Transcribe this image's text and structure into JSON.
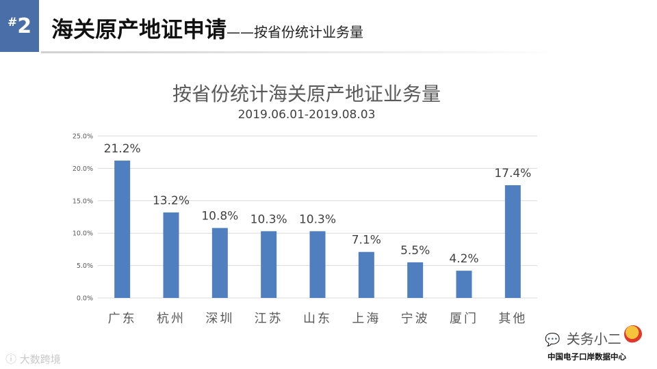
{
  "header": {
    "hash": "#",
    "number": "2",
    "title": "海关原产地证申请",
    "subtitle": "——按省份统计业务量"
  },
  "chart_data": {
    "type": "bar",
    "title": "按省份统计海关原产地证业务量",
    "subtitle": "2019.06.01-2019.08.03",
    "categories": [
      "广东",
      "杭州",
      "深圳",
      "江苏",
      "山东",
      "上海",
      "宁波",
      "厦门",
      "其他"
    ],
    "values": [
      21.2,
      13.2,
      10.8,
      10.3,
      10.3,
      7.1,
      5.5,
      4.2,
      17.4
    ],
    "data_labels": [
      "21.2%",
      "13.2%",
      "10.8%",
      "10.3%",
      "10.3%",
      "7.1%",
      "5.5%",
      "4.2%",
      "17.4%"
    ],
    "ylim": [
      0,
      25
    ],
    "yticks": [
      "0.0%",
      "5.0%",
      "10.0%",
      "15.0%",
      "20.0%",
      "25.0%"
    ],
    "xlabel": "",
    "ylabel": "",
    "grid": true,
    "legend": "none",
    "bar_color": "#4f7fbf"
  },
  "footer": {
    "watermark_icon": "weibo-icon",
    "watermark": "大数跨境",
    "wechat_icon": "wechat-icon",
    "account": "关务小二",
    "org": "中国电子口岸数据中心"
  }
}
